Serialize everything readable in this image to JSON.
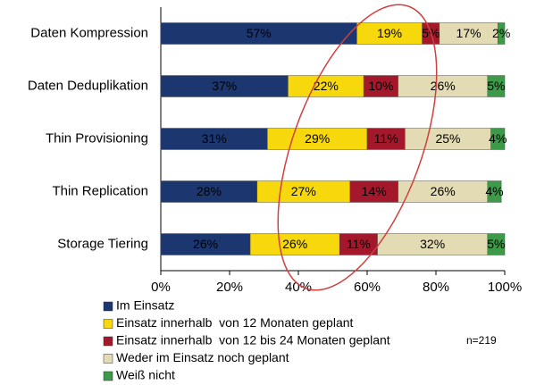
{
  "chart_data": {
    "type": "bar",
    "orientation": "horizontal",
    "stacked": true,
    "categories": [
      "Daten Kompression",
      "Daten Deduplikation",
      "Thin Provisioning",
      "Thin Replication",
      "Storage Tiering"
    ],
    "series": [
      {
        "name": "Im Einsatz",
        "color": "#1c3670",
        "values": [
          57,
          37,
          31,
          28,
          26
        ],
        "value_labels": [
          "57%",
          "37%",
          "31%",
          "28%",
          "26%"
        ]
      },
      {
        "name": "Einsatz innerhalb  von 12 Monaten geplant",
        "color": "#f6d80c",
        "values": [
          19,
          22,
          29,
          27,
          26
        ],
        "value_labels": [
          "19%",
          "22%",
          "29%",
          "27%",
          "26%"
        ]
      },
      {
        "name": "Einsatz innerhalb  von 12 bis 24 Monaten geplant",
        "color": "#a3182a",
        "values": [
          5,
          10,
          11,
          14,
          11
        ],
        "value_labels": [
          "5%",
          "10%",
          "11%",
          "14%",
          "11%"
        ]
      },
      {
        "name": "Weder im Einsatz noch geplant",
        "color": "#e2dbb4",
        "values": [
          17,
          26,
          25,
          26,
          32
        ],
        "value_labels": [
          "17%",
          "26%",
          "25%",
          "26%",
          "32%"
        ]
      },
      {
        "name": "Weiß nicht",
        "color": "#3c9a48",
        "values": [
          2,
          5,
          4,
          4,
          5
        ],
        "value_labels": [
          "2%",
          "5%",
          "4%",
          "4%",
          "5%"
        ]
      }
    ],
    "xlim": [
      0,
      100
    ],
    "xticks": [
      {
        "value": 0,
        "label": "0%"
      },
      {
        "value": 20,
        "label": "20%"
      },
      {
        "value": 40,
        "label": "40%"
      },
      {
        "value": 60,
        "label": "60%"
      },
      {
        "value": 80,
        "label": "80%"
      },
      {
        "value": 100,
        "label": "100%"
      }
    ],
    "annotation": "n=219"
  }
}
